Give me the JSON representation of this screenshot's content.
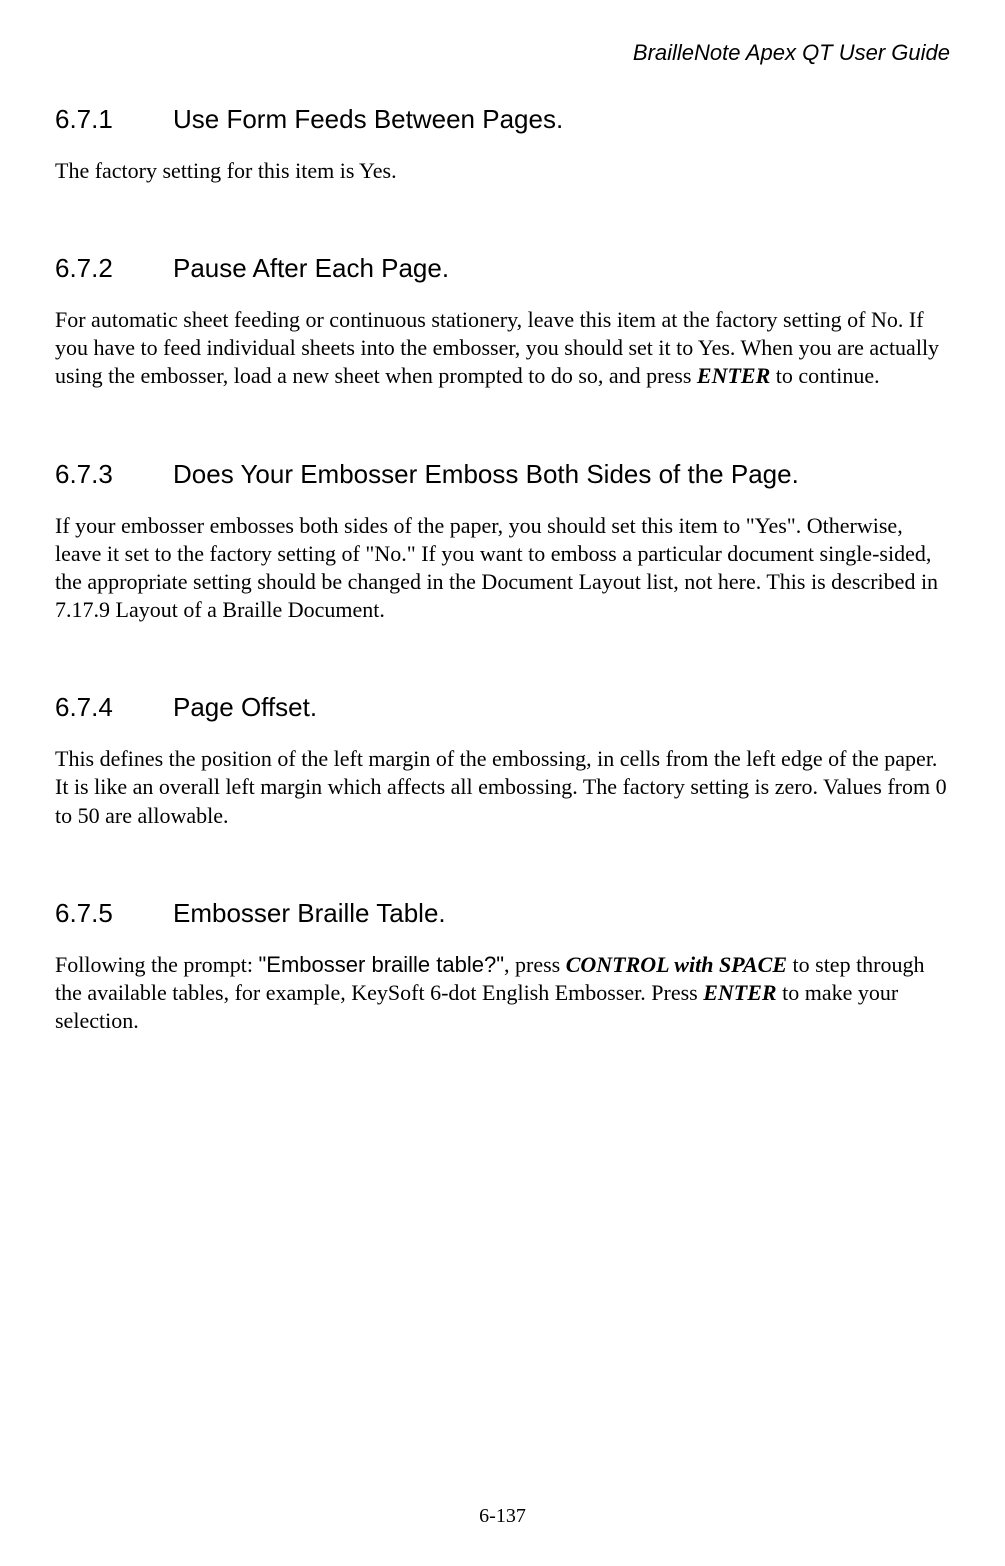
{
  "header": {
    "title": "BrailleNote Apex QT User Guide"
  },
  "sections": [
    {
      "num": "6.7.1",
      "title": "Use Form Feeds Between Pages.",
      "body_parts": [
        {
          "text": "The factory setting for this item is Yes.",
          "style": "plain"
        }
      ]
    },
    {
      "num": "6.7.2",
      "title": "Pause After Each Page.",
      "body_parts": [
        {
          "text": "For automatic sheet feeding or continuous stationery, leave this item at the factory setting of No. If you have to feed individual sheets into the embosser, you should set it to Yes. When you are actually using the embosser, load a new sheet when prompted to do so, and press ",
          "style": "plain"
        },
        {
          "text": "ENTER",
          "style": "bold-italic"
        },
        {
          "text": " to continue.",
          "style": "plain"
        }
      ]
    },
    {
      "num": "6.7.3",
      "title": "Does Your Embosser Emboss Both Sides of the Page.",
      "body_parts": [
        {
          "text": "If your embosser embosses both sides of the paper, you should set this item to \"Yes\". Otherwise, leave it set to the factory setting of \"No.\" If you want to emboss a particular document single-sided, the appropriate setting should be changed in the Document Layout list, not here. This is described in 7.17.9 Layout of a Braille Document.",
          "style": "plain"
        }
      ]
    },
    {
      "num": "6.7.4",
      "title": "Page Offset.",
      "body_parts": [
        {
          "text": "This defines the position of the left margin of the embossing, in cells from the left edge of the paper. It is like an overall left margin which affects all embossing. The factory setting is zero. Values from 0 to 50 are allowable.",
          "style": "plain"
        }
      ]
    },
    {
      "num": "6.7.5",
      "title": "Embosser Braille Table.",
      "body_parts": [
        {
          "text": "Following the prompt: ",
          "style": "plain"
        },
        {
          "text": "\"Embosser braille table?\"",
          "style": "bold-sans"
        },
        {
          "text": ", press ",
          "style": "plain"
        },
        {
          "text": "CONTROL with SPACE",
          "style": "bold-italic"
        },
        {
          "text": " to step through the available tables, for example, KeySoft 6-dot English Embosser. Press ",
          "style": "plain"
        },
        {
          "text": "ENTER",
          "style": "bold-italic"
        },
        {
          "text": " to make your selection.",
          "style": "plain"
        }
      ]
    }
  ],
  "page_number": "6-137"
}
